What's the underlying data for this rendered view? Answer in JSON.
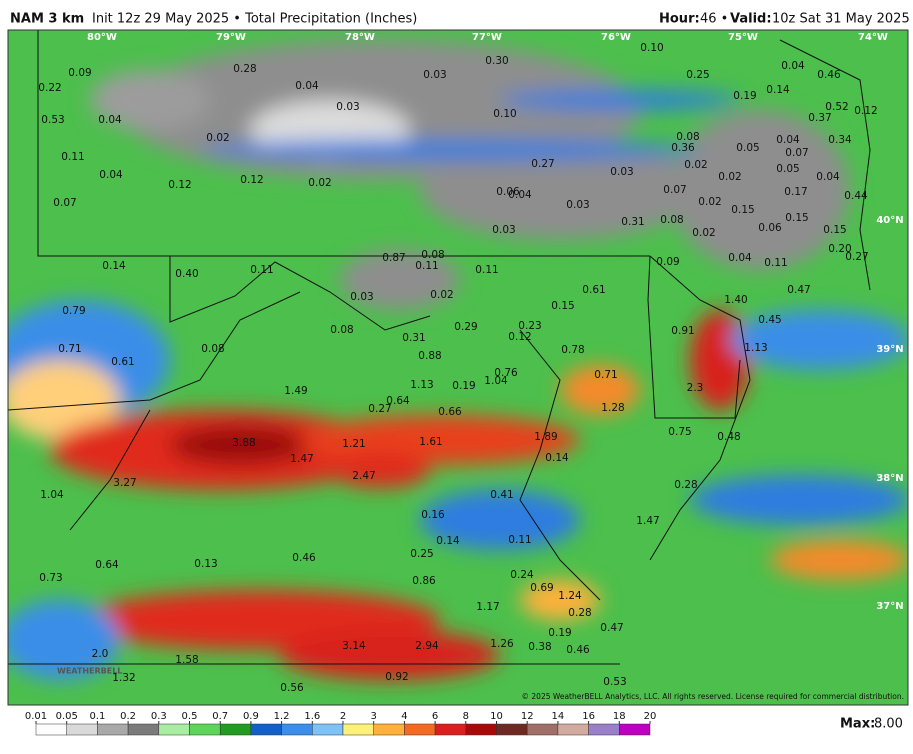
{
  "header": {
    "model": "NAM 3 km",
    "init": "Init 12z 29 May 2025 • Total Precipitation (Inches)",
    "hour_label": "Hour:",
    "hour": "46 •",
    "valid_label": "Valid:",
    "valid": "10z Sat 31 May 2025"
  },
  "lon_labels": [
    "80°W",
    "79°W",
    "78°W",
    "77°W",
    "76°W",
    "75°W",
    "74°W"
  ],
  "lat_labels": [
    "40°N",
    "39°N",
    "38°N",
    "37°N"
  ],
  "map_values": [
    "0.22",
    "0.09",
    "0.28",
    "0.04",
    "0.03",
    "0.03",
    "0.30",
    "0.10",
    "0.25",
    "0.04",
    "0.46",
    "0.53",
    "0.04",
    "0.02",
    "0.10",
    "0.19",
    "0.14",
    "0.52",
    "0.12",
    "0.37",
    "0.11",
    "0.04",
    "0.12",
    "0.12",
    "0.02",
    "0.27",
    "0.08",
    "0.36",
    "0.05",
    "0.04",
    "0.07",
    "0.34",
    "0.02",
    "0.02",
    "0.05",
    "0.04",
    "0.07",
    "0.06",
    "0.04",
    "0.03",
    "0.03",
    "0.07",
    "0.02",
    "0.17",
    "0.44",
    "0.15",
    "0.15",
    "0.03",
    "0.31",
    "0.08",
    "0.02",
    "0.06",
    "0.15",
    "0.20",
    "0.14",
    "0.40",
    "0.11",
    "0.87",
    "0.08",
    "0.11",
    "0.11",
    "0.09",
    "0.04",
    "0.11",
    "0.27",
    "0.61",
    "0.47",
    "1.40",
    "0.79",
    "0.03",
    "0.02",
    "0.15",
    "0.08",
    "0.29",
    "0.23",
    "0.91",
    "0.45",
    "0.12",
    "0.31",
    "0.71",
    "0.08",
    "0.78",
    "1.13",
    "0.61",
    "0.88",
    "0.76",
    "0.71",
    "1.13",
    "0.19",
    "1.04",
    "1.49",
    "2.3",
    "0.64",
    "0.27",
    "0.66",
    "1.28",
    "3.88",
    "1.21",
    "1.61",
    "1.89",
    "0.75",
    "0.48",
    "1.47",
    "2.47",
    "0.14",
    "3.27",
    "1.04",
    "0.41",
    "0.28",
    "0.16",
    "1.47",
    "0.14",
    "0.11",
    "0.25",
    "0.13",
    "0.46",
    "0.64",
    "0.73",
    "0.86",
    "0.24",
    "0.69",
    "1.24",
    "1.17",
    "0.28",
    "0.47",
    "0.19",
    "1.26",
    "0.38",
    "0.46",
    "3.14",
    "2.94",
    "2.0",
    "1.58",
    "1.32",
    "0.92",
    "0.56",
    "0.53"
  ],
  "legend": {
    "ticks": [
      0.01,
      0.05,
      0.1,
      0.2,
      0.3,
      0.5,
      0.7,
      0.9,
      1.2,
      1.6,
      2,
      3,
      4,
      6,
      8,
      10,
      12,
      14,
      16,
      18,
      20
    ],
    "colors": [
      "#fdfdfd",
      "#d9d9d9",
      "#a9a9a9",
      "#7b7b7b",
      "#a8eea0",
      "#5fd45a",
      "#239b23",
      "#1560c8",
      "#3c8ee8",
      "#7fc2f5",
      "#fff07a",
      "#ffb13b",
      "#f46a22",
      "#dc1e1e",
      "#a80a0a",
      "#6e2a22",
      "#a07068",
      "#d2aaa0",
      "#9a7fc9",
      "#c000c0"
    ]
  },
  "max_label": "Max:",
  "max_value": "8.00",
  "copyright": "© 2025 WeatherBELL Analytics, LLC. All rights reserved. License required for commercial distribution.",
  "watermark": "WEATHERBELL"
}
